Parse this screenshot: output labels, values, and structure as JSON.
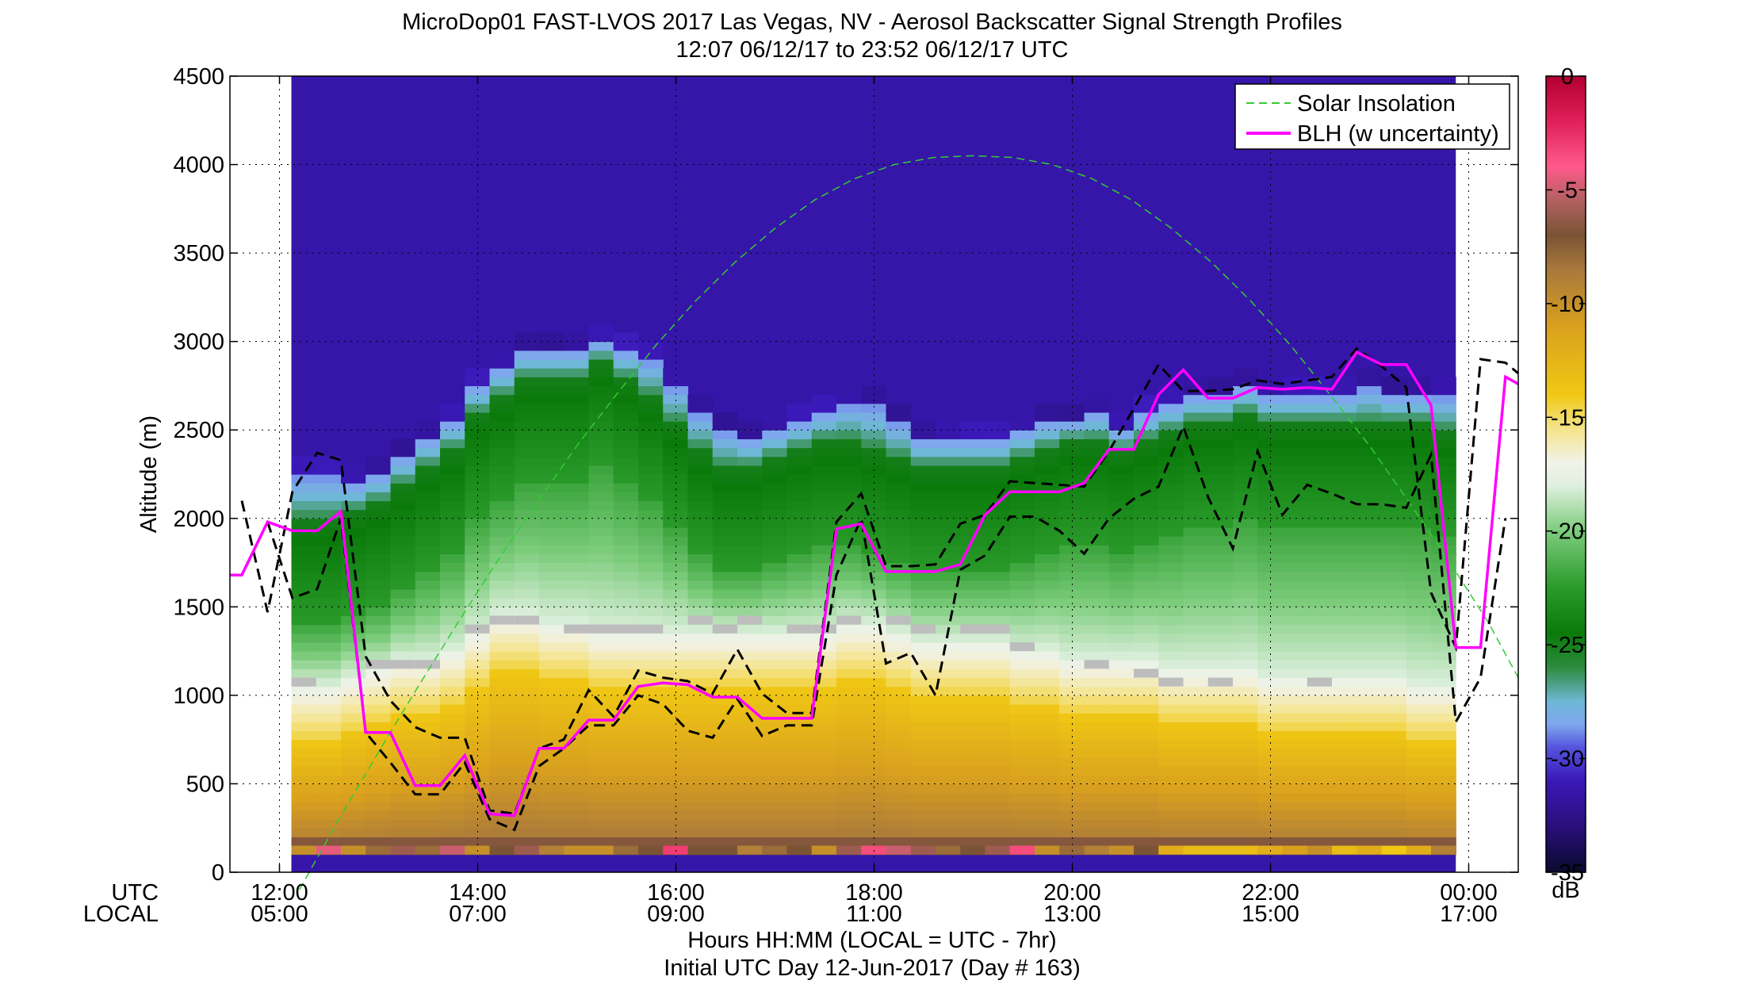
{
  "chart_data": {
    "type": "heatmap",
    "title": "MicroDop01 FAST-LVOS 2017 Las Vegas, NV - Aerosol Backscatter Signal Strength Profiles",
    "subtitle": "12:07 06/12/17 to 23:52 06/12/17  UTC",
    "ylabel": "Altitude (m)",
    "xlabel": "Hours HH:MM  (LOCAL = UTC - 7hr)",
    "xlabel2": "Initial UTC Day 12-Jun-2017 (Day # 163)",
    "row_labels": {
      "utc": "UTC",
      "local": "LOCAL"
    },
    "x_ticks": [
      {
        "hour": 12,
        "utc": "12:00",
        "local": "05:00"
      },
      {
        "hour": 14,
        "utc": "14:00",
        "local": "07:00"
      },
      {
        "hour": 16,
        "utc": "16:00",
        "local": "09:00"
      },
      {
        "hour": 18,
        "utc": "18:00",
        "local": "11:00"
      },
      {
        "hour": 20,
        "utc": "20:00",
        "local": "13:00"
      },
      {
        "hour": 22,
        "utc": "22:00",
        "local": "15:00"
      },
      {
        "hour": 24,
        "utc": "00:00",
        "local": "17:00"
      }
    ],
    "xlim_hours_utc": [
      11.5,
      24.5
    ],
    "data_start_hour": 12.12,
    "data_end_hour": 23.87,
    "ylim": [
      0,
      4500
    ],
    "y_ticks": [
      0,
      500,
      1000,
      1500,
      2000,
      2500,
      3000,
      3500,
      4000,
      4500
    ],
    "grid": true,
    "legend_position": "top-right",
    "legend": [
      {
        "name": "Solar Insolation",
        "style": "dashed",
        "color": "#33cc33"
      },
      {
        "name": "BLH (w uncertainty)",
        "style": "solid",
        "color": "#ff00ff"
      }
    ],
    "colorbar": {
      "label": "dB",
      "range": [
        -35,
        0
      ],
      "ticks": [
        0,
        -5,
        -10,
        -15,
        -20,
        -25,
        -30,
        -35
      ],
      "stops": [
        [
          -35,
          "#0a0a2e"
        ],
        [
          -33,
          "#2a0f7a"
        ],
        [
          -31,
          "#3a18b8"
        ],
        [
          -29.5,
          "#5555dd"
        ],
        [
          -28.5,
          "#7ea7ee"
        ],
        [
          -27.5,
          "#6fb7d6"
        ],
        [
          -26,
          "#2e8b3e"
        ],
        [
          -24.5,
          "#0a7a0a"
        ],
        [
          -22.5,
          "#2a9a2a"
        ],
        [
          -20,
          "#7ccc7c"
        ],
        [
          -18,
          "#dff0df"
        ],
        [
          -17,
          "#f2f2ea"
        ],
        [
          -15.5,
          "#f4e48a"
        ],
        [
          -14,
          "#f0c814"
        ],
        [
          -11,
          "#d9a01e"
        ],
        [
          -8.5,
          "#a8783c"
        ],
        [
          -7,
          "#7a5434"
        ],
        [
          -5.5,
          "#b06060"
        ],
        [
          -4,
          "#ff5a8a"
        ],
        [
          -2,
          "#e0205a"
        ],
        [
          0,
          "#b30030"
        ]
      ]
    },
    "profiles": {
      "hours": [
        12.12,
        12.37,
        12.62,
        12.87,
        13.12,
        13.37,
        13.62,
        13.87,
        14.12,
        14.37,
        14.62,
        14.87,
        15.12,
        15.37,
        15.62,
        15.87,
        16.12,
        16.37,
        16.62,
        16.87,
        17.12,
        17.37,
        17.62,
        17.87,
        18.12,
        18.37,
        18.62,
        18.87,
        19.12,
        19.37,
        19.62,
        19.87,
        20.12,
        20.37,
        20.62,
        20.87,
        21.12,
        21.37,
        21.62,
        21.87,
        22.12,
        22.37,
        22.62,
        22.87,
        23.12,
        23.37,
        23.62
      ],
      "aerosol_top_m": [
        2250,
        2250,
        2200,
        2250,
        2350,
        2450,
        2550,
        2750,
        2850,
        2950,
        2950,
        2950,
        3000,
        2950,
        2900,
        2750,
        2600,
        2500,
        2450,
        2500,
        2550,
        2600,
        2650,
        2650,
        2550,
        2450,
        2450,
        2450,
        2450,
        2500,
        2550,
        2550,
        2600,
        2500,
        2600,
        2650,
        2700,
        2700,
        2750,
        2700,
        2700,
        2700,
        2700,
        2750,
        2700,
        2700,
        2700
      ],
      "green_top_m": [
        2000,
        2000,
        2050,
        2100,
        2200,
        2300,
        2400,
        2600,
        2700,
        2800,
        2800,
        2800,
        2900,
        2800,
        2700,
        2550,
        2400,
        2300,
        2300,
        2350,
        2400,
        2450,
        2450,
        2400,
        2350,
        2300,
        2300,
        2300,
        2300,
        2350,
        2400,
        2450,
        2450,
        2400,
        2450,
        2500,
        2550,
        2550,
        2600,
        2550,
        2550,
        2550,
        2550,
        2550,
        2550,
        2550,
        2500
      ],
      "yellow_top_m": [
        900,
        900,
        950,
        1000,
        1050,
        1050,
        1100,
        1200,
        1300,
        1300,
        1250,
        1250,
        1200,
        1200,
        1200,
        1200,
        1200,
        1200,
        1200,
        1200,
        1200,
        1200,
        1250,
        1250,
        1200,
        1150,
        1150,
        1150,
        1150,
        1100,
        1100,
        1050,
        1050,
        1050,
        1050,
        1000,
        1000,
        1000,
        1000,
        950,
        950,
        950,
        950,
        950,
        950,
        900,
        900
      ],
      "grey_band_m": [
        1050,
        null,
        null,
        1150,
        1150,
        1150,
        null,
        1350,
        1400,
        1400,
        null,
        1350,
        1350,
        1350,
        1350,
        null,
        1400,
        1350,
        1400,
        null,
        1350,
        1350,
        1400,
        null,
        1400,
        1350,
        null,
        1350,
        1350,
        1250,
        null,
        null,
        1150,
        null,
        1100,
        1050,
        null,
        1050,
        null,
        null,
        null,
        1050,
        null,
        null,
        null,
        null,
        null
      ]
    },
    "surface_row": {
      "hours": [
        12.12,
        12.37,
        12.62,
        12.87,
        13.12,
        13.37,
        13.62,
        13.87,
        14.12,
        14.37,
        14.62,
        14.87,
        15.12,
        15.37,
        15.62,
        15.87,
        16.12,
        16.37,
        16.62,
        16.87,
        17.12,
        17.37,
        17.62,
        17.87,
        18.12,
        18.37,
        18.62,
        18.87,
        19.12,
        19.37,
        19.62,
        19.87,
        20.12,
        20.37,
        20.62,
        20.87,
        21.12,
        21.37,
        21.62,
        21.87,
        22.12,
        22.37,
        22.62,
        22.87,
        23.12,
        23.37,
        23.62
      ],
      "db": [
        -10,
        -4.5,
        -10,
        -8,
        -6,
        -8,
        -5,
        -10,
        -7,
        -6,
        -9,
        -10,
        -10,
        -8,
        -7,
        -3,
        -7,
        -7,
        -9,
        -8,
        -7,
        -10,
        -6,
        -3.5,
        -5,
        -6,
        -8,
        -7,
        -6,
        -3.5,
        -10,
        -8,
        -9,
        -10,
        -7,
        -12,
        -13,
        -13,
        -13,
        -12,
        -11,
        -10,
        -13,
        -12,
        -14,
        -12,
        -9
      ]
    },
    "blh": {
      "hours": [
        11.5,
        11.62,
        11.88,
        12.13,
        12.38,
        12.62,
        12.87,
        13.12,
        13.37,
        13.62,
        13.87,
        14.12,
        14.37,
        14.62,
        14.87,
        15.12,
        15.37,
        15.62,
        15.87,
        16.12,
        16.37,
        16.62,
        16.87,
        17.12,
        17.37,
        17.62,
        17.87,
        18.12,
        18.37,
        18.62,
        18.87,
        19.12,
        19.37,
        19.62,
        19.87,
        20.12,
        20.37,
        20.62,
        20.87,
        21.12,
        21.37,
        21.62,
        21.87,
        22.12,
        22.37,
        22.62,
        22.87,
        23.12,
        23.37,
        23.62,
        23.87,
        24.12,
        24.37,
        24.5
      ],
      "values": [
        1680,
        1680,
        1980,
        1930,
        1930,
        2040,
        790,
        790,
        490,
        490,
        660,
        330,
        320,
        700,
        700,
        860,
        860,
        1050,
        1070,
        1060,
        990,
        990,
        870,
        870,
        870,
        1940,
        1970,
        1700,
        1700,
        1700,
        1740,
        2020,
        2150,
        2150,
        2150,
        2200,
        2390,
        2390,
        2700,
        2840,
        2680,
        2680,
        2740,
        2730,
        2740,
        2730,
        2940,
        2870,
        2870,
        2640,
        1270,
        1270,
        2800,
        2760
      ]
    },
    "blh_lower": {
      "hours": [
        11.88,
        12.13,
        12.38,
        12.62,
        12.87,
        13.12,
        13.37,
        13.62,
        13.87,
        14.12,
        14.37,
        14.62,
        14.87,
        15.12,
        15.37,
        15.62,
        15.87,
        16.12,
        16.37,
        16.62,
        16.87,
        17.12,
        17.37,
        17.62,
        17.87,
        18.12,
        18.37,
        18.62,
        18.87,
        19.12,
        19.37,
        19.62,
        19.87,
        20.12,
        20.37,
        20.62,
        20.87,
        21.12,
        21.37,
        21.62,
        21.87,
        22.12,
        22.37,
        22.62,
        22.87,
        23.12,
        23.37,
        23.62,
        23.87,
        24.12,
        24.37
      ],
      "values": [
        1980,
        1550,
        1600,
        2000,
        790,
        620,
        440,
        440,
        620,
        300,
        240,
        600,
        700,
        830,
        830,
        1000,
        950,
        800,
        760,
        980,
        770,
        830,
        830,
        1680,
        2000,
        1180,
        1240,
        1000,
        1710,
        1790,
        2010,
        2010,
        1930,
        1800,
        2000,
        2110,
        2180,
        2520,
        2120,
        1830,
        2380,
        2020,
        2190,
        2140,
        2080,
        2080,
        2060,
        2360,
        850,
        1100,
        2000
      ]
    },
    "blh_upper": {
      "hours": [
        11.62,
        11.88,
        12.13,
        12.38,
        12.62,
        12.87,
        13.12,
        13.37,
        13.62,
        13.87,
        14.12,
        14.37,
        14.62,
        14.87,
        15.12,
        15.37,
        15.62,
        15.87,
        16.12,
        16.37,
        16.62,
        16.87,
        17.12,
        17.37,
        17.62,
        17.87,
        18.12,
        18.37,
        18.62,
        18.87,
        19.12,
        19.37,
        19.62,
        19.87,
        20.12,
        20.37,
        20.62,
        20.87,
        21.12,
        21.37,
        21.62,
        21.87,
        22.12,
        22.37,
        22.62,
        22.87,
        23.12,
        23.37,
        23.62,
        23.87,
        24.12,
        24.37,
        24.5
      ],
      "values": [
        2100,
        1470,
        2150,
        2370,
        2330,
        1220,
        970,
        820,
        760,
        760,
        350,
        330,
        700,
        750,
        1030,
        880,
        1140,
        1100,
        1080,
        1010,
        1260,
        1010,
        900,
        900,
        1980,
        2140,
        1730,
        1730,
        1740,
        1970,
        2020,
        2210,
        2200,
        2190,
        2180,
        2380,
        2620,
        2870,
        2720,
        2720,
        2730,
        2780,
        2760,
        2780,
        2800,
        2960,
        2860,
        2740,
        1580,
        1270,
        2900,
        2880,
        2820
      ]
    },
    "solar": {
      "hours": [
        12.2,
        12.6,
        13.0,
        13.4,
        13.8,
        14.2,
        14.6,
        15.0,
        15.4,
        15.8,
        16.2,
        16.6,
        17.0,
        17.4,
        17.8,
        18.2,
        18.6,
        19.0,
        19.4,
        19.8,
        20.2,
        20.6,
        21.0,
        21.4,
        21.8,
        22.2,
        22.6,
        23.0,
        23.4,
        23.8,
        24.2,
        24.5
      ],
      "values": [
        -100,
        300,
        680,
        1050,
        1410,
        1760,
        2090,
        2410,
        2700,
        2980,
        3230,
        3450,
        3640,
        3800,
        3920,
        4000,
        4040,
        4050,
        4040,
        4000,
        3920,
        3800,
        3640,
        3450,
        3230,
        2980,
        2700,
        2410,
        2090,
        1760,
        1410,
        1100
      ]
    }
  }
}
